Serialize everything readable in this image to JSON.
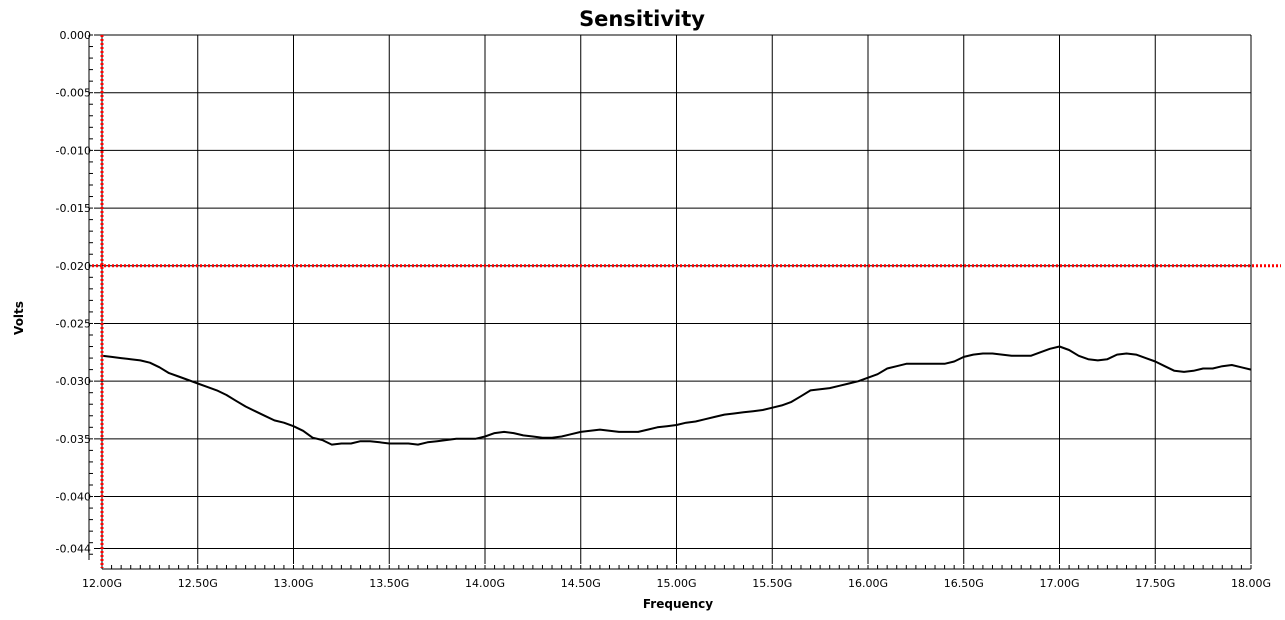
{
  "chart_data": {
    "type": "line",
    "title": "Sensitivity",
    "xlabel": "Frequency",
    "ylabel": "Volts",
    "xlim": [
      12.0,
      18.0
    ],
    "ylim": [
      -0.0455,
      0.0
    ],
    "grid": true,
    "x_tick_labels": [
      "12.00G",
      "12.50G",
      "13.00G",
      "13.50G",
      "14.00G",
      "14.50G",
      "15.00G",
      "15.50G",
      "16.00G",
      "16.50G",
      "17.00G",
      "17.50G",
      "18.00G"
    ],
    "x_ticks": [
      12.0,
      12.5,
      13.0,
      13.5,
      14.0,
      14.5,
      15.0,
      15.5,
      16.0,
      16.5,
      17.0,
      17.5,
      18.0
    ],
    "y_tick_labels": [
      "0.000",
      "-0.005",
      "-0.010",
      "-0.015",
      "-0.020",
      "-0.025",
      "-0.030",
      "-0.035",
      "-0.040",
      "-0.044"
    ],
    "y_ticks": [
      0.0,
      -0.005,
      -0.01,
      -0.015,
      -0.02,
      -0.025,
      -0.03,
      -0.035,
      -0.04,
      -0.0445
    ],
    "markers": {
      "vertical_x": 12.0,
      "horizontal_y": -0.02,
      "color": "#ff0000"
    },
    "series": [
      {
        "color": "#000000",
        "x": [
          12.0,
          12.05,
          12.1,
          12.15,
          12.2,
          12.25,
          12.3,
          12.35,
          12.4,
          12.45,
          12.5,
          12.55,
          12.6,
          12.65,
          12.7,
          12.75,
          12.8,
          12.85,
          12.9,
          12.95,
          13.0,
          13.05,
          13.1,
          13.15,
          13.2,
          13.25,
          13.3,
          13.35,
          13.4,
          13.45,
          13.5,
          13.55,
          13.6,
          13.65,
          13.7,
          13.75,
          13.8,
          13.85,
          13.9,
          13.95,
          14.0,
          14.05,
          14.1,
          14.15,
          14.2,
          14.25,
          14.3,
          14.35,
          14.4,
          14.45,
          14.5,
          14.55,
          14.6,
          14.65,
          14.7,
          14.75,
          14.8,
          14.85,
          14.9,
          14.95,
          15.0,
          15.05,
          15.1,
          15.15,
          15.2,
          15.25,
          15.3,
          15.35,
          15.4,
          15.45,
          15.5,
          15.55,
          15.6,
          15.65,
          15.7,
          15.75,
          15.8,
          15.85,
          15.9,
          15.95,
          16.0,
          16.05,
          16.1,
          16.15,
          16.2,
          16.25,
          16.3,
          16.35,
          16.4,
          16.45,
          16.5,
          16.55,
          16.6,
          16.65,
          16.7,
          16.75,
          16.8,
          16.85,
          16.9,
          16.95,
          17.0,
          17.05,
          17.1,
          17.15,
          17.2,
          17.25,
          17.3,
          17.35,
          17.4,
          17.45,
          17.5,
          17.55,
          17.6,
          17.65,
          17.7,
          17.75,
          17.8,
          17.85,
          17.9,
          17.95,
          18.0
        ],
        "y": [
          -0.0278,
          -0.0279,
          -0.028,
          -0.0281,
          -0.0282,
          -0.0284,
          -0.0288,
          -0.0293,
          -0.0296,
          -0.0299,
          -0.0302,
          -0.0305,
          -0.0308,
          -0.0312,
          -0.0317,
          -0.0322,
          -0.0326,
          -0.033,
          -0.0334,
          -0.0336,
          -0.0339,
          -0.0343,
          -0.0349,
          -0.0351,
          -0.0355,
          -0.0354,
          -0.0354,
          -0.0352,
          -0.0352,
          -0.0353,
          -0.0354,
          -0.0354,
          -0.0354,
          -0.0355,
          -0.0353,
          -0.0352,
          -0.0351,
          -0.035,
          -0.035,
          -0.035,
          -0.0348,
          -0.0345,
          -0.0344,
          -0.0345,
          -0.0347,
          -0.0348,
          -0.0349,
          -0.0349,
          -0.0348,
          -0.0346,
          -0.0344,
          -0.0343,
          -0.0342,
          -0.0343,
          -0.0344,
          -0.0344,
          -0.0344,
          -0.0342,
          -0.034,
          -0.0339,
          -0.0338,
          -0.0336,
          -0.0335,
          -0.0333,
          -0.0331,
          -0.0329,
          -0.0328,
          -0.0327,
          -0.0326,
          -0.0325,
          -0.0323,
          -0.0321,
          -0.0318,
          -0.0313,
          -0.0308,
          -0.0307,
          -0.0306,
          -0.0304,
          -0.0302,
          -0.03,
          -0.0297,
          -0.0294,
          -0.0289,
          -0.0287,
          -0.0285,
          -0.0285,
          -0.0285,
          -0.0285,
          -0.0285,
          -0.0283,
          -0.0279,
          -0.0277,
          -0.0276,
          -0.0276,
          -0.0277,
          -0.0278,
          -0.0278,
          -0.0278,
          -0.0275,
          -0.0272,
          -0.027,
          -0.0273,
          -0.0278,
          -0.0281,
          -0.0282,
          -0.0281,
          -0.0277,
          -0.0276,
          -0.0277,
          -0.028,
          -0.0283,
          -0.0287,
          -0.0291,
          -0.0292,
          -0.0291,
          -0.0289,
          -0.0289,
          -0.0287,
          -0.0286,
          -0.0288,
          -0.029
        ]
      }
    ]
  }
}
